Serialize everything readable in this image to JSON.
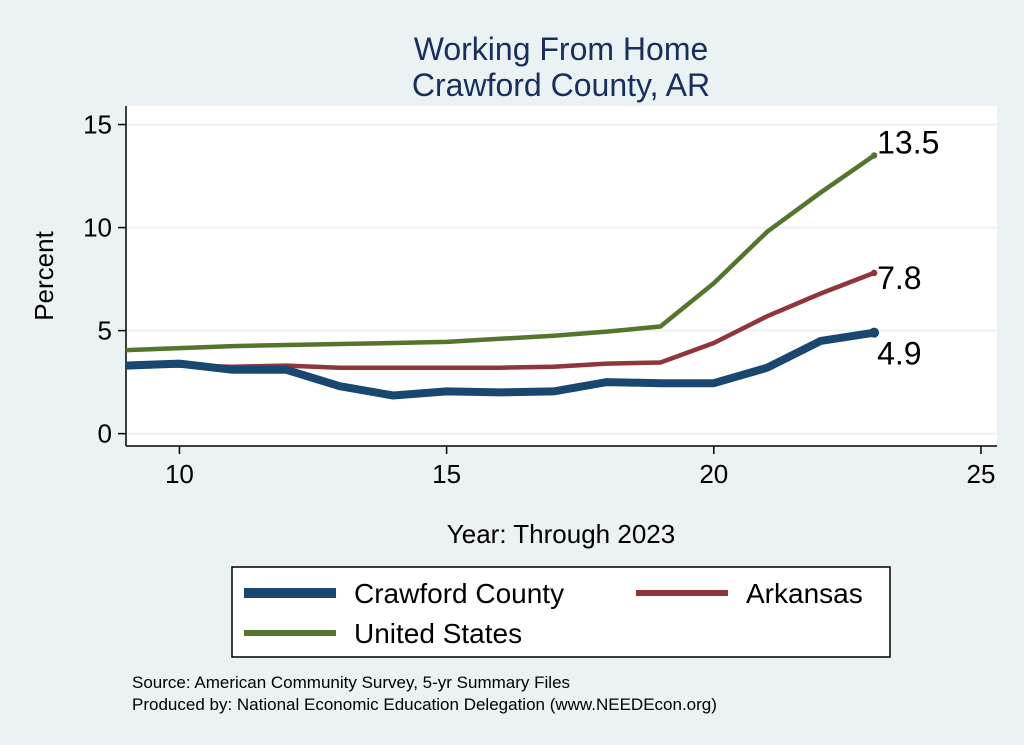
{
  "chart_data": {
    "type": "line",
    "title": "Working From Home",
    "subtitle": "Crawford County, AR",
    "xlabel": "Year: Through 2023",
    "ylabel": "Percent",
    "xlim": [
      9,
      25.3
    ],
    "ylim": [
      -0.6,
      15.9
    ],
    "x_ticks": [
      10,
      15,
      20,
      25
    ],
    "y_ticks": [
      0,
      5,
      10,
      15
    ],
    "grid": true,
    "legend_position": "bottom",
    "series": [
      {
        "name": "Crawford County",
        "color": "#1a476f",
        "width": "thick",
        "x": [
          9,
          10,
          11,
          12,
          13,
          14,
          15,
          16,
          17,
          18,
          19,
          20,
          21,
          22,
          23
        ],
        "values": [
          3.3,
          3.4,
          3.1,
          3.1,
          2.3,
          1.85,
          2.05,
          2.0,
          2.05,
          2.5,
          2.45,
          2.45,
          3.2,
          4.5,
          4.9
        ],
        "end_label": "4.9"
      },
      {
        "name": "Arkansas",
        "color": "#90353b",
        "width": "normal",
        "x": [
          9,
          10,
          11,
          12,
          13,
          14,
          15,
          16,
          17,
          18,
          19,
          20,
          21,
          22,
          23
        ],
        "values": [
          3.3,
          3.3,
          3.25,
          3.3,
          3.2,
          3.2,
          3.2,
          3.2,
          3.25,
          3.4,
          3.45,
          4.4,
          5.7,
          6.8,
          7.8
        ],
        "end_label": "7.8"
      },
      {
        "name": "United States",
        "color": "#55752f",
        "width": "normal",
        "x": [
          9,
          10,
          11,
          12,
          13,
          14,
          15,
          16,
          17,
          18,
          19,
          20,
          21,
          22,
          23
        ],
        "values": [
          4.05,
          4.15,
          4.25,
          4.3,
          4.35,
          4.4,
          4.45,
          4.6,
          4.75,
          4.95,
          5.2,
          7.3,
          9.8,
          11.7,
          13.5
        ],
        "end_label": "13.5"
      }
    ],
    "source_note": "Source: American Community Survey, 5-yr Summary Files",
    "produced_note": "Produced by: National Economic Education Delegation (www.NEEDEcon.org)"
  }
}
